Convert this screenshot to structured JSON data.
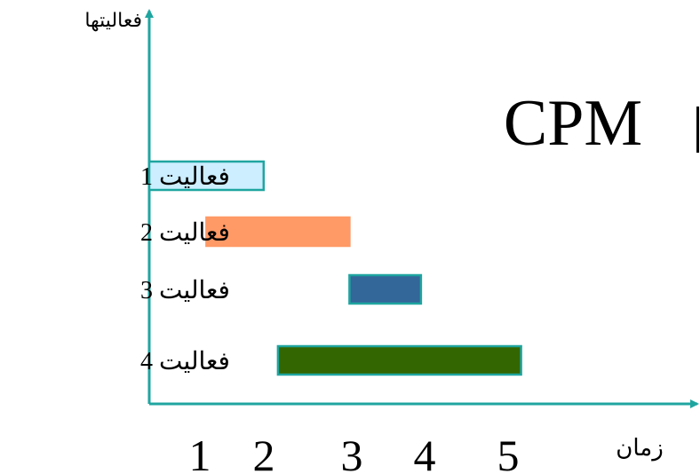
{
  "chart_data": {
    "type": "gantt",
    "title": "CPM",
    "ylabel": "فعاليتها",
    "xlabel": "زمان",
    "x_ticks": [
      "1",
      "2",
      "3",
      "4",
      "5"
    ],
    "activities": [
      {
        "label": "فعاليت 1",
        "start": 0.0,
        "end": 1.6,
        "fill": "#cceeff",
        "stroke": "#1fa5a0"
      },
      {
        "label": "فعاليت 2",
        "start": 0.8,
        "end": 2.8,
        "fill": "#ff9966",
        "stroke": "#ff9966"
      },
      {
        "label": "فعاليت 3",
        "start": 2.8,
        "end": 3.8,
        "fill": "#336699",
        "stroke": "#1fa5a0"
      },
      {
        "label": "فعاليت 4",
        "start": 1.8,
        "end": 5.2,
        "fill": "#336600",
        "stroke": "#1fa5a0"
      }
    ],
    "axis_color": "#1fa5a0"
  }
}
